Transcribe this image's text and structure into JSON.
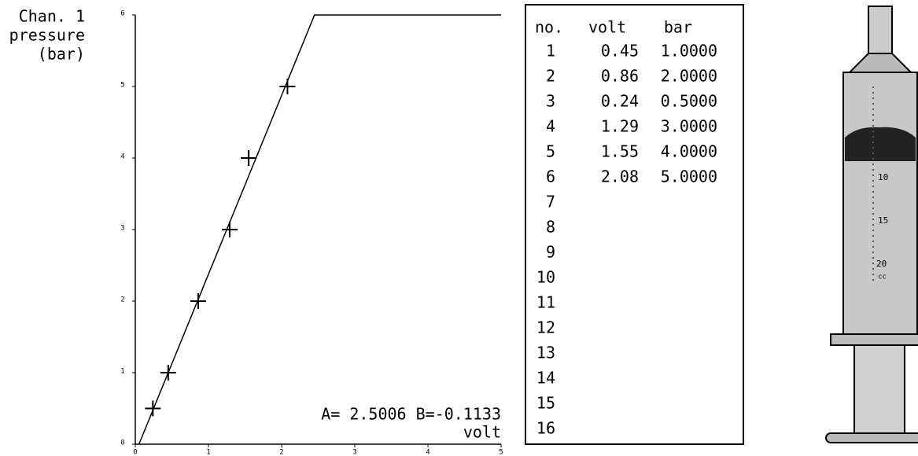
{
  "chart_data": {
    "type": "scatter",
    "y_label": [
      "Chan. 1",
      "pressure",
      "(bar)"
    ],
    "x_label": "volt",
    "annotation": "A= 2.5006  B=-0.1133",
    "x": [
      0.24,
      0.45,
      0.86,
      1.29,
      1.55,
      2.08
    ],
    "values": [
      0.5,
      1,
      2,
      3,
      4,
      5
    ],
    "fit_line": {
      "x": [
        0.05,
        2.45,
        5
      ],
      "values": [
        0,
        6,
        6
      ]
    },
    "xlim": [
      0,
      5
    ],
    "ylim": [
      0,
      6
    ],
    "xticks": [
      0,
      1,
      2,
      3,
      4,
      5
    ],
    "yticks": [
      0,
      1,
      2,
      3,
      4,
      5,
      6
    ],
    "color": "#000000"
  },
  "table": {
    "header": [
      "no.",
      "volt",
      "bar"
    ],
    "rows": [
      [
        "1",
        "0.45",
        "1.0000"
      ],
      [
        "2",
        "0.86",
        "2.0000"
      ],
      [
        "3",
        "0.24",
        "0.5000"
      ],
      [
        "4",
        "1.29",
        "3.0000"
      ],
      [
        "5",
        "1.55",
        "4.0000"
      ],
      [
        "6",
        "2.08",
        "5.0000"
      ],
      [
        "7"
      ],
      [
        "8"
      ],
      [
        "9"
      ],
      [
        "10"
      ],
      [
        "11"
      ],
      [
        "12"
      ],
      [
        "13"
      ],
      [
        "14"
      ],
      [
        "15"
      ],
      [
        "16"
      ]
    ]
  },
  "syringe": {
    "labels": [
      "10",
      "15",
      "20",
      "cc"
    ]
  }
}
